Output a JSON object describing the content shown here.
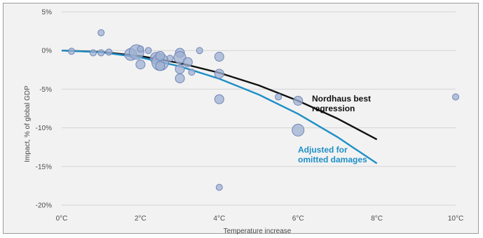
{
  "chart_data": {
    "type": "scatter",
    "xlabel": "Temperature increase",
    "ylabel": "Impact, % of global GDP",
    "xlim": [
      0,
      10
    ],
    "ylim": [
      -20,
      5
    ],
    "grid": "horizontal",
    "x_ticks": [
      "0°C",
      "2°C",
      "4°C",
      "6°C",
      "8°C",
      "10°C"
    ],
    "y_ticks": [
      "5%",
      "0%",
      "-5%",
      "-10%",
      "-15%",
      "-20%"
    ],
    "points": [
      {
        "x": 0.25,
        "y": -0.1,
        "size": 1
      },
      {
        "x": 0.8,
        "y": -0.3,
        "size": 1
      },
      {
        "x": 1.0,
        "y": -0.3,
        "size": 1
      },
      {
        "x": 1.0,
        "y": 2.3,
        "size": 1
      },
      {
        "x": 1.2,
        "y": -0.2,
        "size": 1
      },
      {
        "x": 1.75,
        "y": -0.5,
        "size": 3
      },
      {
        "x": 1.9,
        "y": -0.2,
        "size": 4
      },
      {
        "x": 2.0,
        "y": 0.2,
        "size": 1
      },
      {
        "x": 2.0,
        "y": -1.8,
        "size": 2
      },
      {
        "x": 2.2,
        "y": 0.0,
        "size": 1
      },
      {
        "x": 2.4,
        "y": -1.0,
        "size": 3
      },
      {
        "x": 2.5,
        "y": -1.5,
        "size": 5
      },
      {
        "x": 2.5,
        "y": -0.7,
        "size": 2
      },
      {
        "x": 2.5,
        "y": -2.0,
        "size": 2
      },
      {
        "x": 2.75,
        "y": -1.0,
        "size": 1
      },
      {
        "x": 3.0,
        "y": -0.3,
        "size": 2
      },
      {
        "x": 3.0,
        "y": -0.9,
        "size": 3
      },
      {
        "x": 3.0,
        "y": -2.4,
        "size": 2
      },
      {
        "x": 3.0,
        "y": -3.6,
        "size": 2
      },
      {
        "x": 3.2,
        "y": -1.5,
        "size": 2
      },
      {
        "x": 3.3,
        "y": -2.8,
        "size": 1
      },
      {
        "x": 3.5,
        "y": 0.0,
        "size": 1
      },
      {
        "x": 4.0,
        "y": -0.8,
        "size": 2
      },
      {
        "x": 4.0,
        "y": -3.0,
        "size": 2
      },
      {
        "x": 4.0,
        "y": -6.3,
        "size": 2
      },
      {
        "x": 4.0,
        "y": -17.7,
        "size": 1
      },
      {
        "x": 5.5,
        "y": -6.0,
        "size": 1
      },
      {
        "x": 6.0,
        "y": -6.5,
        "size": 2
      },
      {
        "x": 6.0,
        "y": -10.3,
        "size": 3
      },
      {
        "x": 10.0,
        "y": -6.0,
        "size": 1
      }
    ],
    "series": [
      {
        "name": "Nordhaus best regression",
        "color": "#111111",
        "x": [
          0,
          1,
          2,
          3,
          4,
          5,
          6,
          7,
          8
        ],
        "y": [
          0,
          -0.18,
          -0.72,
          -1.62,
          -2.88,
          -4.5,
          -6.5,
          -8.8,
          -11.5
        ]
      },
      {
        "name": "Adjusted for omitted damages",
        "color": "#1e8fc6",
        "x": [
          0,
          1,
          2,
          3,
          4,
          5,
          6,
          7,
          8
        ],
        "y": [
          0,
          -0.23,
          -0.9,
          -2.05,
          -3.65,
          -5.7,
          -8.2,
          -11.2,
          -14.6
        ]
      }
    ],
    "annotations": [
      {
        "lines": [
          "Nordhaus best",
          "regression"
        ],
        "color": "#111111"
      },
      {
        "lines": [
          "Adjusted for",
          "omitted damages"
        ],
        "color": "#1e8fc6"
      }
    ],
    "colors": {
      "point_fill": "#9fb0d2",
      "point_stroke": "#6f86b8",
      "grid": "#d4d4d4",
      "plot_bg": "#f2f2f2"
    }
  }
}
